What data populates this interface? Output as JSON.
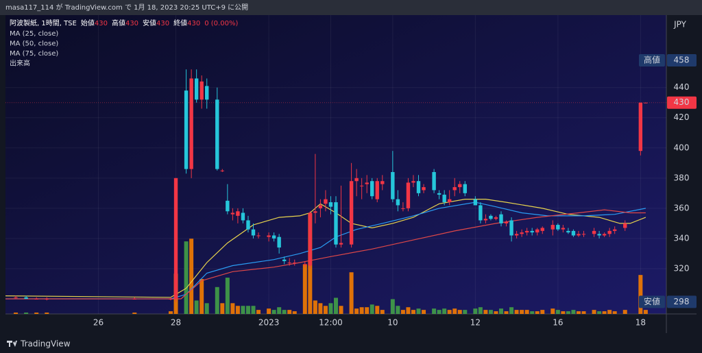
{
  "chart_data": {
    "type": "candlestick",
    "header": "masa117_114 が TradingView.com で 1月 18, 2023 20:25 UTC+9 に公開",
    "symbol": "阿波製紙, 1時間, TSE",
    "ohlc_legend": [
      {
        "label": "始値",
        "value": 430
      },
      {
        "label": "高値",
        "value": 430
      },
      {
        "label": "安値",
        "value": 430
      },
      {
        "label": "終値",
        "value": 430
      }
    ],
    "change": "0 (0.00%)",
    "volume_name": "出来高",
    "y_axis_label": "JPY",
    "logo": "TradingView",
    "high_label": {
      "text": "高値",
      "value": 458
    },
    "low_label": {
      "text": "安値",
      "value": 298
    },
    "last_price": 430,
    "up_color": "#f23645",
    "down_color": "#26c6da",
    "volume_up_color": "#f57c00",
    "volume_down_color": "#43a047",
    "grid": true,
    "xlim": [
      0,
      128
    ],
    "xticks": [
      {
        "value": 18,
        "label": "26"
      },
      {
        "value": 33,
        "label": "28"
      },
      {
        "value": 51,
        "label": "2023"
      },
      {
        "value": 63,
        "label": "12:00"
      },
      {
        "value": 75,
        "label": "10"
      },
      {
        "value": 91,
        "label": "12"
      },
      {
        "value": 107,
        "label": "16"
      },
      {
        "value": 123,
        "label": "18"
      }
    ],
    "ylim": [
      290,
      488
    ],
    "yticks": [
      320,
      340,
      360,
      380,
      400,
      420,
      440
    ],
    "volume_lim": [
      0,
      100
    ],
    "x": [
      2,
      4,
      6,
      8,
      25,
      32,
      33,
      35,
      36,
      37,
      38,
      39,
      41,
      42,
      43,
      44,
      45,
      46,
      47,
      48,
      49,
      51,
      52,
      53,
      54,
      55,
      56,
      58,
      59,
      60,
      61,
      62,
      63,
      64,
      65,
      67,
      68,
      69,
      70,
      71,
      72,
      73,
      75,
      76,
      77,
      78,
      79,
      80,
      81,
      83,
      84,
      85,
      86,
      87,
      88,
      89,
      91,
      92,
      93,
      94,
      95,
      96,
      97,
      98,
      99,
      100,
      101,
      102,
      103,
      104,
      106,
      107,
      108,
      109,
      110,
      111,
      112,
      114,
      115,
      116,
      117,
      118,
      120,
      123,
      124
    ],
    "open": [
      301,
      301,
      300,
      300,
      300,
      300,
      300,
      438,
      386,
      446,
      432,
      441,
      432,
      385,
      365,
      356,
      355,
      357,
      352,
      346,
      342,
      341,
      342,
      341,
      326,
      324,
      324,
      323,
      322,
      357,
      360,
      363,
      364,
      364,
      336,
      336,
      378,
      375,
      376,
      378,
      366,
      376,
      384,
      366,
      360,
      360,
      377,
      378,
      372,
      384,
      370,
      369,
      364,
      372,
      374,
      376,
      366,
      362,
      352,
      355,
      353,
      356,
      350,
      352,
      342,
      343,
      344,
      345,
      344,
      345,
      346,
      349,
      346,
      345,
      345,
      342,
      343,
      343,
      343,
      342,
      343,
      345,
      347,
      398,
      430
    ],
    "high": [
      302,
      302,
      301,
      301,
      301,
      301,
      380,
      452,
      452,
      452,
      448,
      446,
      440,
      386,
      376,
      360,
      360,
      360,
      355,
      350,
      344,
      344,
      344,
      343,
      328,
      327,
      326,
      325,
      358,
      396,
      366,
      372,
      368,
      368,
      375,
      390,
      386,
      380,
      382,
      380,
      380,
      382,
      398,
      372,
      364,
      380,
      382,
      382,
      376,
      386,
      372,
      372,
      372,
      380,
      378,
      378,
      368,
      364,
      356,
      356,
      355,
      358,
      352,
      354,
      345,
      346,
      347,
      347,
      347,
      348,
      352,
      350,
      349,
      347,
      346,
      345,
      345,
      347,
      345,
      344,
      347,
      348,
      352,
      430,
      430
    ],
    "low": [
      300,
      300,
      300,
      299,
      300,
      299,
      298,
      383,
      380,
      430,
      426,
      426,
      385,
      384,
      356,
      352,
      350,
      350,
      344,
      340,
      340,
      338,
      338,
      330,
      323,
      322,
      322,
      321,
      320,
      350,
      354,
      358,
      356,
      334,
      334,
      334,
      368,
      366,
      370,
      366,
      364,
      372,
      364,
      358,
      358,
      358,
      374,
      368,
      370,
      370,
      366,
      362,
      362,
      368,
      370,
      368,
      362,
      350,
      350,
      352,
      352,
      348,
      348,
      338,
      340,
      341,
      342,
      342,
      342,
      343,
      342,
      345,
      344,
      343,
      341,
      341,
      341,
      341,
      340,
      341,
      341,
      343,
      345,
      395,
      430
    ],
    "close": [
      301,
      300,
      300,
      300,
      300,
      300,
      380,
      386,
      446,
      432,
      444,
      432,
      386,
      385,
      358,
      357,
      358,
      352,
      346,
      342,
      342,
      342,
      340,
      334,
      325,
      324,
      324,
      323,
      357,
      358,
      362,
      366,
      361,
      336,
      337,
      378,
      380,
      375,
      377,
      368,
      378,
      378,
      366,
      362,
      360,
      377,
      378,
      370,
      374,
      372,
      369,
      364,
      366,
      374,
      376,
      370,
      362,
      352,
      353,
      353,
      354,
      350,
      351,
      342,
      343,
      344,
      345,
      344,
      346,
      347,
      349,
      346,
      347,
      344,
      342,
      343,
      343,
      345,
      342,
      343,
      345,
      346,
      350,
      430,
      430
    ],
    "volume": [
      1,
      1,
      1,
      1,
      1,
      2,
      30,
      54,
      56,
      10,
      26,
      8,
      20,
      8,
      27,
      8,
      6,
      6,
      6,
      6,
      3,
      4,
      3,
      5,
      3,
      3,
      2,
      37,
      75,
      10,
      8,
      6,
      8,
      12,
      6,
      31,
      4,
      5,
      5,
      7,
      6,
      3,
      11,
      6,
      3,
      5,
      3,
      4,
      3,
      4,
      3,
      4,
      3,
      4,
      3,
      3,
      4,
      5,
      3,
      3,
      2,
      4,
      2,
      5,
      3,
      3,
      3,
      2,
      2,
      3,
      4,
      3,
      2,
      2,
      3,
      2,
      2,
      3,
      2,
      2,
      3,
      2,
      3,
      29,
      3
    ],
    "series": [
      {
        "name": "MA (25, close)",
        "color": "#e8d44d",
        "x": [
          0,
          32,
          35,
          39,
          43,
          48,
          53,
          57,
          59,
          61,
          64,
          67,
          71,
          75,
          79,
          84,
          89,
          93,
          97,
          104,
          109,
          115,
          119,
          121,
          124
        ],
        "values": [
          302,
          301,
          307,
          324,
          337,
          349,
          354,
          355,
          357,
          363,
          357,
          350,
          347,
          350,
          354,
          363,
          366,
          366,
          364,
          360,
          356,
          354,
          350,
          350,
          354
        ]
      },
      {
        "name": "MA (50, close)",
        "color": "#2a9df4",
        "x": [
          0,
          32,
          35,
          39,
          44,
          52,
          57,
          61,
          64,
          68,
          73,
          79,
          84,
          91,
          95,
          100,
          105,
          112,
          118,
          124
        ],
        "values": [
          300,
          300,
          303,
          317,
          322,
          326,
          330,
          334,
          341,
          346,
          350,
          355,
          360,
          364,
          361,
          357,
          355,
          355,
          356,
          360
        ]
      },
      {
        "name": "MA (75, close)",
        "color": "#e04848",
        "x": [
          0,
          32,
          34,
          38,
          44,
          52,
          57,
          63,
          71,
          79,
          87,
          95,
          103,
          111,
          116,
          121,
          124
        ],
        "values": [
          300,
          300,
          300,
          312,
          318,
          321,
          324,
          328,
          333,
          339,
          345,
          350,
          354,
          357,
          359,
          357,
          357
        ]
      }
    ]
  }
}
